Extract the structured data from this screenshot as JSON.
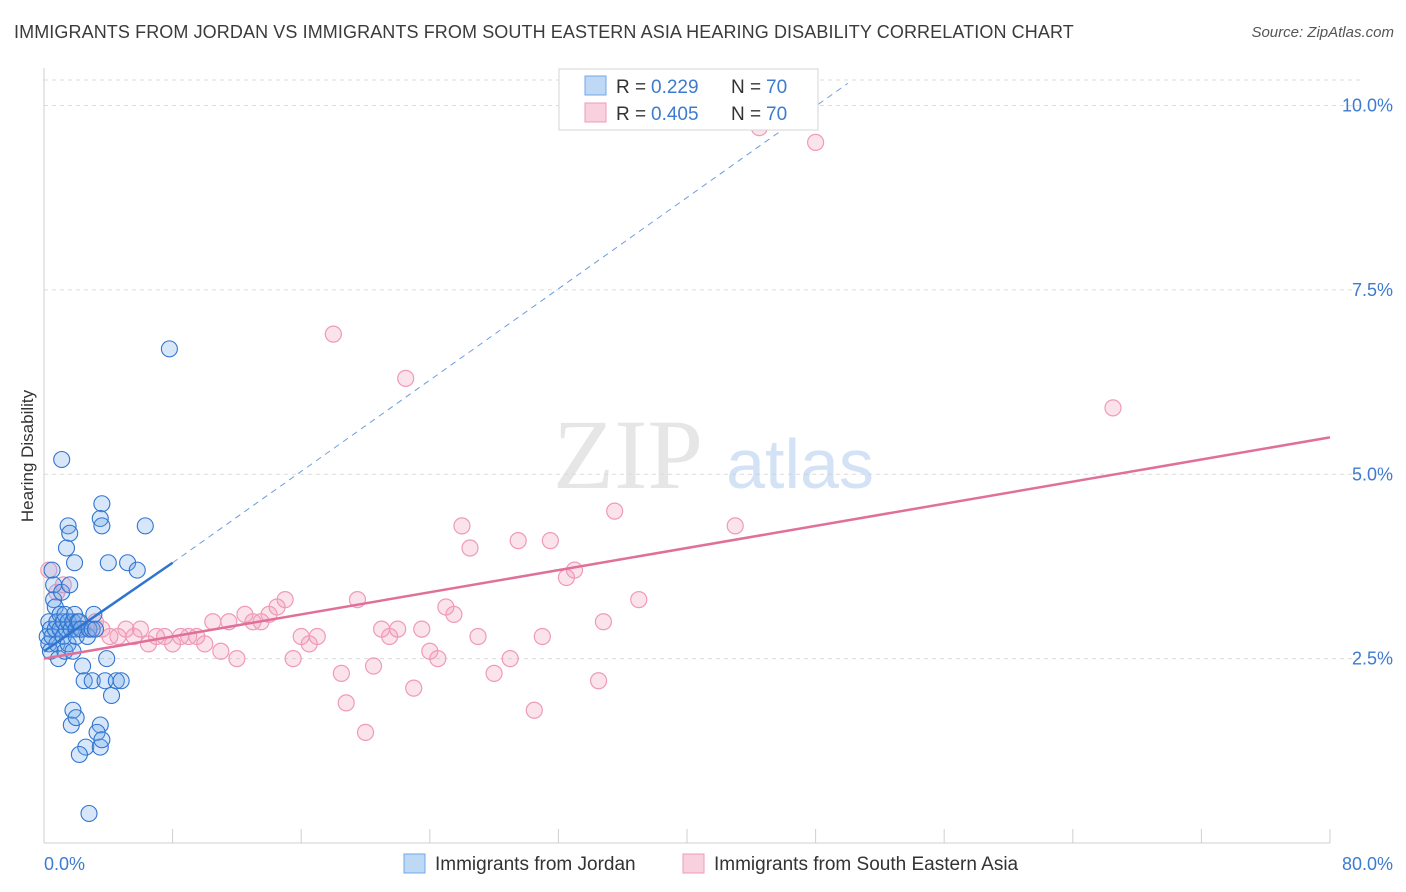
{
  "title": "IMMIGRANTS FROM JORDAN VS IMMIGRANTS FROM SOUTH EASTERN ASIA HEARING DISABILITY CORRELATION CHART",
  "source": "Source: ZipAtlas.com",
  "watermark": {
    "zip": "ZIP",
    "atlas": "atlas"
  },
  "colors": {
    "blue": "#6fa8e8",
    "blue_line": "#2f74d0",
    "pink": "#f09ab8",
    "pink_line": "#e0709a",
    "axis_label": "#3d7bd0"
  },
  "chart_data": {
    "type": "scatter",
    "title": "IMMIGRANTS FROM JORDAN VS IMMIGRANTS FROM SOUTH EASTERN ASIA HEARING DISABILITY CORRELATION CHART",
    "xlabel": "",
    "ylabel": "Hearing Disability",
    "xlim": [
      0,
      80
    ],
    "ylim": [
      0,
      10.4
    ],
    "x_tick_labels": {
      "min": "0.0%",
      "max": "80.0%"
    },
    "y_ticks": [
      {
        "value": 2.5,
        "label": "2.5%"
      },
      {
        "value": 5.0,
        "label": "5.0%"
      },
      {
        "value": 7.5,
        "label": "7.5%"
      },
      {
        "value": 10.0,
        "label": "10.0%"
      }
    ],
    "legend_position": "top-center",
    "legend": [
      {
        "r_label": "R =",
        "r_value": "0.229",
        "n_label": "N =",
        "n_value": "70"
      },
      {
        "r_label": "R =",
        "r_value": "0.405",
        "n_label": "N =",
        "n_value": "70"
      }
    ],
    "series": [
      {
        "name": "Immigrants from Jordan",
        "color": "#6fa8e8",
        "trend": {
          "x0": 0,
          "y0": 2.6,
          "x1": 8.0,
          "y1": 3.8,
          "dash_to_x": 50,
          "dash_to_y": 10.3
        },
        "points": [
          [
            0.2,
            2.8
          ],
          [
            0.3,
            2.7
          ],
          [
            0.3,
            3.0
          ],
          [
            0.4,
            2.9
          ],
          [
            0.4,
            2.6
          ],
          [
            0.5,
            3.7
          ],
          [
            0.5,
            2.8
          ],
          [
            0.6,
            3.3
          ],
          [
            0.6,
            3.5
          ],
          [
            0.7,
            3.2
          ],
          [
            0.7,
            2.9
          ],
          [
            0.8,
            2.7
          ],
          [
            0.8,
            3.0
          ],
          [
            0.9,
            2.5
          ],
          [
            1.0,
            3.1
          ],
          [
            1.0,
            2.9
          ],
          [
            1.1,
            3.4
          ],
          [
            1.2,
            2.8
          ],
          [
            1.2,
            3.0
          ],
          [
            1.3,
            3.1
          ],
          [
            1.3,
            2.6
          ],
          [
            1.4,
            2.9
          ],
          [
            1.5,
            3.0
          ],
          [
            1.5,
            2.7
          ],
          [
            1.6,
            3.5
          ],
          [
            1.7,
            2.9
          ],
          [
            1.8,
            3.0
          ],
          [
            1.8,
            2.6
          ],
          [
            1.9,
            3.1
          ],
          [
            2.0,
            2.9
          ],
          [
            2.0,
            2.8
          ],
          [
            2.1,
            3.0
          ],
          [
            2.2,
            3.0
          ],
          [
            2.3,
            2.9
          ],
          [
            2.4,
            2.4
          ],
          [
            2.5,
            2.2
          ],
          [
            2.6,
            1.3
          ],
          [
            2.7,
            2.8
          ],
          [
            2.8,
            2.9
          ],
          [
            3.0,
            2.9
          ],
          [
            1.1,
            5.2
          ],
          [
            1.4,
            4.0
          ],
          [
            1.5,
            4.3
          ],
          [
            1.6,
            4.2
          ],
          [
            1.9,
            3.8
          ],
          [
            2.2,
            1.2
          ],
          [
            1.7,
            1.6
          ],
          [
            1.8,
            1.8
          ],
          [
            2.0,
            1.7
          ],
          [
            3.5,
            1.6
          ],
          [
            3.0,
            2.2
          ],
          [
            3.3,
            1.5
          ],
          [
            3.2,
            2.9
          ],
          [
            3.1,
            3.1
          ],
          [
            3.6,
            4.6
          ],
          [
            3.5,
            4.4
          ],
          [
            3.6,
            4.3
          ],
          [
            3.5,
            1.3
          ],
          [
            3.6,
            1.4
          ],
          [
            3.8,
            2.2
          ],
          [
            3.9,
            2.5
          ],
          [
            4.0,
            3.8
          ],
          [
            4.2,
            2.0
          ],
          [
            4.5,
            2.2
          ],
          [
            4.8,
            2.2
          ],
          [
            5.2,
            3.8
          ],
          [
            5.8,
            3.7
          ],
          [
            6.3,
            4.3
          ],
          [
            7.8,
            6.7
          ],
          [
            2.8,
            0.4
          ]
        ]
      },
      {
        "name": "Immigrants from South Eastern Asia",
        "color": "#f09ab8",
        "trend": {
          "x0": 0,
          "y0": 2.5,
          "x1": 80,
          "y1": 5.5
        },
        "points": [
          [
            0.3,
            3.7
          ],
          [
            0.8,
            3.4
          ],
          [
            1.2,
            3.5
          ],
          [
            1.8,
            3.0
          ],
          [
            2.4,
            2.9
          ],
          [
            2.8,
            2.9
          ],
          [
            3.2,
            3.0
          ],
          [
            3.6,
            2.9
          ],
          [
            4.1,
            2.8
          ],
          [
            4.6,
            2.8
          ],
          [
            5.1,
            2.9
          ],
          [
            5.6,
            2.8
          ],
          [
            6.0,
            2.9
          ],
          [
            6.5,
            2.7
          ],
          [
            7.0,
            2.8
          ],
          [
            7.5,
            2.8
          ],
          [
            8.0,
            2.7
          ],
          [
            8.5,
            2.8
          ],
          [
            9.0,
            2.8
          ],
          [
            9.5,
            2.8
          ],
          [
            10.0,
            2.7
          ],
          [
            10.5,
            3.0
          ],
          [
            11.0,
            2.6
          ],
          [
            11.5,
            3.0
          ],
          [
            12.0,
            2.5
          ],
          [
            12.5,
            3.1
          ],
          [
            13.0,
            3.0
          ],
          [
            13.5,
            3.0
          ],
          [
            14.0,
            3.1
          ],
          [
            14.5,
            3.2
          ],
          [
            15.0,
            3.3
          ],
          [
            15.5,
            2.5
          ],
          [
            16.0,
            2.8
          ],
          [
            16.5,
            2.7
          ],
          [
            17.0,
            2.8
          ],
          [
            18.0,
            6.9
          ],
          [
            18.5,
            2.3
          ],
          [
            18.8,
            1.9
          ],
          [
            19.5,
            3.3
          ],
          [
            20.0,
            1.5
          ],
          [
            20.5,
            2.4
          ],
          [
            21.0,
            2.9
          ],
          [
            21.5,
            2.8
          ],
          [
            22.0,
            2.9
          ],
          [
            22.5,
            6.3
          ],
          [
            23.0,
            2.1
          ],
          [
            23.5,
            2.9
          ],
          [
            24.0,
            2.6
          ],
          [
            24.5,
            2.5
          ],
          [
            25.0,
            3.2
          ],
          [
            25.5,
            3.1
          ],
          [
            26.0,
            4.3
          ],
          [
            26.5,
            4.0
          ],
          [
            27.0,
            2.8
          ],
          [
            28.0,
            2.3
          ],
          [
            29.0,
            2.5
          ],
          [
            29.5,
            4.1
          ],
          [
            30.5,
            1.8
          ],
          [
            31.0,
            2.8
          ],
          [
            31.5,
            4.1
          ],
          [
            32.5,
            3.6
          ],
          [
            33.0,
            3.7
          ],
          [
            34.5,
            2.2
          ],
          [
            34.8,
            3.0
          ],
          [
            35.5,
            4.5
          ],
          [
            37.0,
            3.3
          ],
          [
            43.0,
            4.3
          ],
          [
            44.5,
            9.7
          ],
          [
            48.0,
            9.5
          ],
          [
            66.5,
            5.9
          ]
        ]
      }
    ]
  }
}
